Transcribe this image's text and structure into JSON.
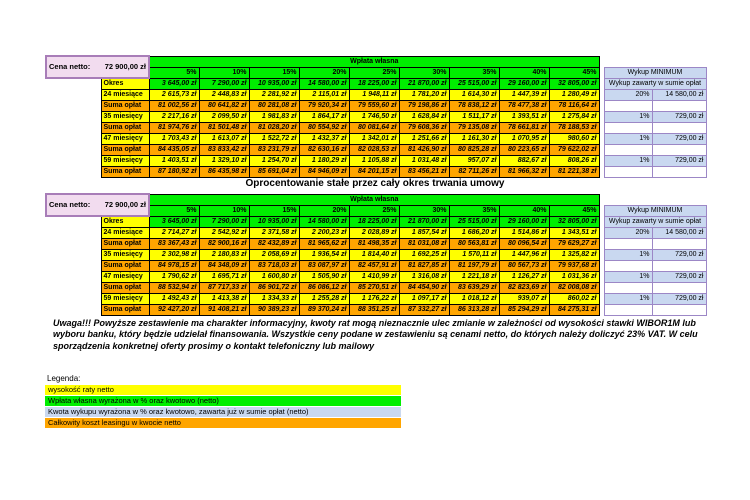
{
  "price": {
    "label": "Cena netto:",
    "value": "72 900,00 zł"
  },
  "deposit_header": "Wpłata własna",
  "okres_label": "Okres",
  "wykup": {
    "header": "Wykup MINIMUM",
    "subheader": "Wykup zawarty w sumie opłat"
  },
  "percentages": [
    "5%",
    "10%",
    "15%",
    "20%",
    "25%",
    "30%",
    "35%",
    "40%",
    "45%"
  ],
  "deposit_amounts": [
    "3 645,00 zł",
    "7 290,00 zł",
    "10 935,00 zł",
    "14 580,00 zł",
    "18 225,00 zł",
    "21 870,00 zł",
    "25 515,00 zł",
    "29 160,00 zł",
    "32 805,00 zł"
  ],
  "tables": [
    {
      "rows": [
        {
          "label": "24 miesiące",
          "type": "rate",
          "values": [
            "2 615,73 zł",
            "2 448,83 zł",
            "2 281,92 zł",
            "2 115,01 zł",
            "1 948,11 zł",
            "1 781,20 zł",
            "1 614,30 zł",
            "1 447,39 zł",
            "1 280,49 zł"
          ],
          "wykup": [
            "20%",
            "14 580,00 zł"
          ]
        },
        {
          "label": "Suma opłat",
          "type": "suma",
          "values": [
            "81 002,56 zł",
            "80 641,82 zł",
            "80 281,08 zł",
            "79 920,34 zł",
            "79 559,60 zł",
            "79 198,86 zł",
            "78 838,12 zł",
            "78 477,38 zł",
            "78 116,64 zł"
          ],
          "wykup": null
        },
        {
          "label": "35 miesięcy",
          "type": "rate",
          "values": [
            "2 217,16 zł",
            "2 099,50 zł",
            "1 981,83 zł",
            "1 864,17 zł",
            "1 746,50 zł",
            "1 628,84 zł",
            "1 511,17 zł",
            "1 393,51 zł",
            "1 275,84 zł"
          ],
          "wykup": [
            "1%",
            "729,00 zł"
          ]
        },
        {
          "label": "Suma opłat",
          "type": "suma",
          "values": [
            "81 974,76 zł",
            "81 501,48 zł",
            "81 028,20 zł",
            "80 554,92 zł",
            "80 081,64 zł",
            "79 608,36 zł",
            "79 135,08 zł",
            "78 661,81 zł",
            "78 188,53 zł"
          ],
          "wykup": null
        },
        {
          "label": "47 miesięcy",
          "type": "rate",
          "values": [
            "1 703,43 zł",
            "1 613,07 zł",
            "1 522,72 zł",
            "1 432,37 zł",
            "1 342,01 zł",
            "1 251,66 zł",
            "1 161,30 zł",
            "1 070,95 zł",
            "980,60 zł"
          ],
          "wykup": [
            "1%",
            "729,00 zł"
          ]
        },
        {
          "label": "Suma opłat",
          "type": "suma",
          "values": [
            "84 435,05 zł",
            "83 833,42 zł",
            "83 231,79 zł",
            "82 630,16 zł",
            "82 028,53 zł",
            "81 426,90 zł",
            "80 825,28 zł",
            "80 223,65 zł",
            "79 622,02 zł"
          ],
          "wykup": null
        },
        {
          "label": "59 miesięcy",
          "type": "rate",
          "values": [
            "1 403,51 zł",
            "1 329,10 zł",
            "1 254,70 zł",
            "1 180,29 zł",
            "1 105,88 zł",
            "1 031,48 zł",
            "957,07 zł",
            "882,67 zł",
            "808,26 zł"
          ],
          "wykup": [
            "1%",
            "729,00 zł"
          ]
        },
        {
          "label": "Suma opłat",
          "type": "suma",
          "values": [
            "87 180,92 zł",
            "86 435,98 zł",
            "85 691,04 zł",
            "84 946,09 zł",
            "84 201,15 zł",
            "83 456,21 zł",
            "82 711,26 zł",
            "81 966,32 zł",
            "81 221,38 zł"
          ],
          "wykup": null
        }
      ]
    },
    {
      "title": "Oprocentowanie stałe przez cały okres trwania umowy",
      "rows": [
        {
          "label": "24 miesiące",
          "type": "rate",
          "values": [
            "2 714,27 zł",
            "2 542,92 zł",
            "2 371,58 zł",
            "2 200,23 zł",
            "2 028,89 zł",
            "1 857,54 zł",
            "1 686,20 zł",
            "1 514,86 zł",
            "1 343,51 zł"
          ],
          "wykup": [
            "20%",
            "14 580,00 zł"
          ]
        },
        {
          "label": "Suma opłat",
          "type": "suma",
          "values": [
            "83 367,43 zł",
            "82 900,16 zł",
            "82 432,89 zł",
            "81 965,62 zł",
            "81 498,35 zł",
            "81 031,08 zł",
            "80 563,81 zł",
            "80 096,54 zł",
            "79 629,27 zł"
          ],
          "wykup": null
        },
        {
          "label": "35 miesięcy",
          "type": "rate",
          "values": [
            "2 302,98 zł",
            "2 180,83 zł",
            "2 058,69 zł",
            "1 936,54 zł",
            "1 814,40 zł",
            "1 692,25 zł",
            "1 570,11 zł",
            "1 447,96 zł",
            "1 325,82 zł"
          ],
          "wykup": [
            "1%",
            "729,00 zł"
          ]
        },
        {
          "label": "Suma opłat",
          "type": "suma",
          "values": [
            "84 978,15 zł",
            "84 348,09 zł",
            "83 718,03 zł",
            "83 087,97 zł",
            "82 457,91 zł",
            "81 827,85 zł",
            "81 197,79 zł",
            "80 567,73 zł",
            "79 937,68 zł"
          ],
          "wykup": null
        },
        {
          "label": "47 miesięcy",
          "type": "rate",
          "values": [
            "1 790,62 zł",
            "1 695,71 zł",
            "1 600,80 zł",
            "1 505,90 zł",
            "1 410,99 zł",
            "1 316,08 zł",
            "1 221,18 zł",
            "1 126,27 zł",
            "1 031,36 zł"
          ],
          "wykup": [
            "1%",
            "729,00 zł"
          ]
        },
        {
          "label": "Suma opłat",
          "type": "suma",
          "values": [
            "88 532,94 zł",
            "87 717,33 zł",
            "86 901,72 zł",
            "86 086,12 zł",
            "85 270,51 zł",
            "84 454,90 zł",
            "83 639,29 zł",
            "82 823,69 zł",
            "82 008,08 zł"
          ],
          "wykup": null
        },
        {
          "label": "59 miesięcy",
          "type": "rate",
          "values": [
            "1 492,43 zł",
            "1 413,38 zł",
            "1 334,33 zł",
            "1 255,28 zł",
            "1 176,22 zł",
            "1 097,17 zł",
            "1 018,12 zł",
            "939,07 zł",
            "860,02 zł"
          ],
          "wykup": [
            "1%",
            "729,00 zł"
          ]
        },
        {
          "label": "Suma opłat",
          "type": "suma",
          "values": [
            "92 427,20 zł",
            "91 408,21 zł",
            "90 389,23 zł",
            "89 370,24 zł",
            "88 351,25 zł",
            "87 332,27 zł",
            "86 313,28 zł",
            "85 294,29 zł",
            "84 275,31 zł"
          ],
          "wykup": null
        }
      ]
    }
  ],
  "warning": "Uwaga!!! Powyższe zestawienie ma charakter informacyjny, kwoty rat mogą nieznacznie ulec zmianie w zależności od wysokości stawki WIBOR1M lub wyboru banku, który będzie udzielał finansowania. Wszystkie ceny podane w zestawieniu są cenami netto, do których należy doliczyć 23% VAT. W celu sporządzenia konkretnej oferty prosimy o kontakt telefoniczny lub mailowy",
  "legend": {
    "title": "Legenda:",
    "items": [
      {
        "label": "wysokość raty netto",
        "color": "#FFFF00"
      },
      {
        "label": "Wpłata własna wyrażona w % oraz kwotowo (netto)",
        "color": "#00EE00"
      },
      {
        "label": "Kwota wykupu wyrażona w % oraz kwotowo, zawarta już w sumie opłat (netto)",
        "color": "#C9D8F0"
      },
      {
        "label": "Całkowity koszt leasingu w kwocie netto",
        "color": "#FFA500"
      }
    ]
  },
  "colors": {
    "green": "#00EE00",
    "yellow": "#FFFF00",
    "orange": "#FFA500",
    "lightblue": "#C9D8F0",
    "pink": "#F2DCEF",
    "pinkborder": "#A87DB8",
    "wkborder": "#9C87C6"
  }
}
